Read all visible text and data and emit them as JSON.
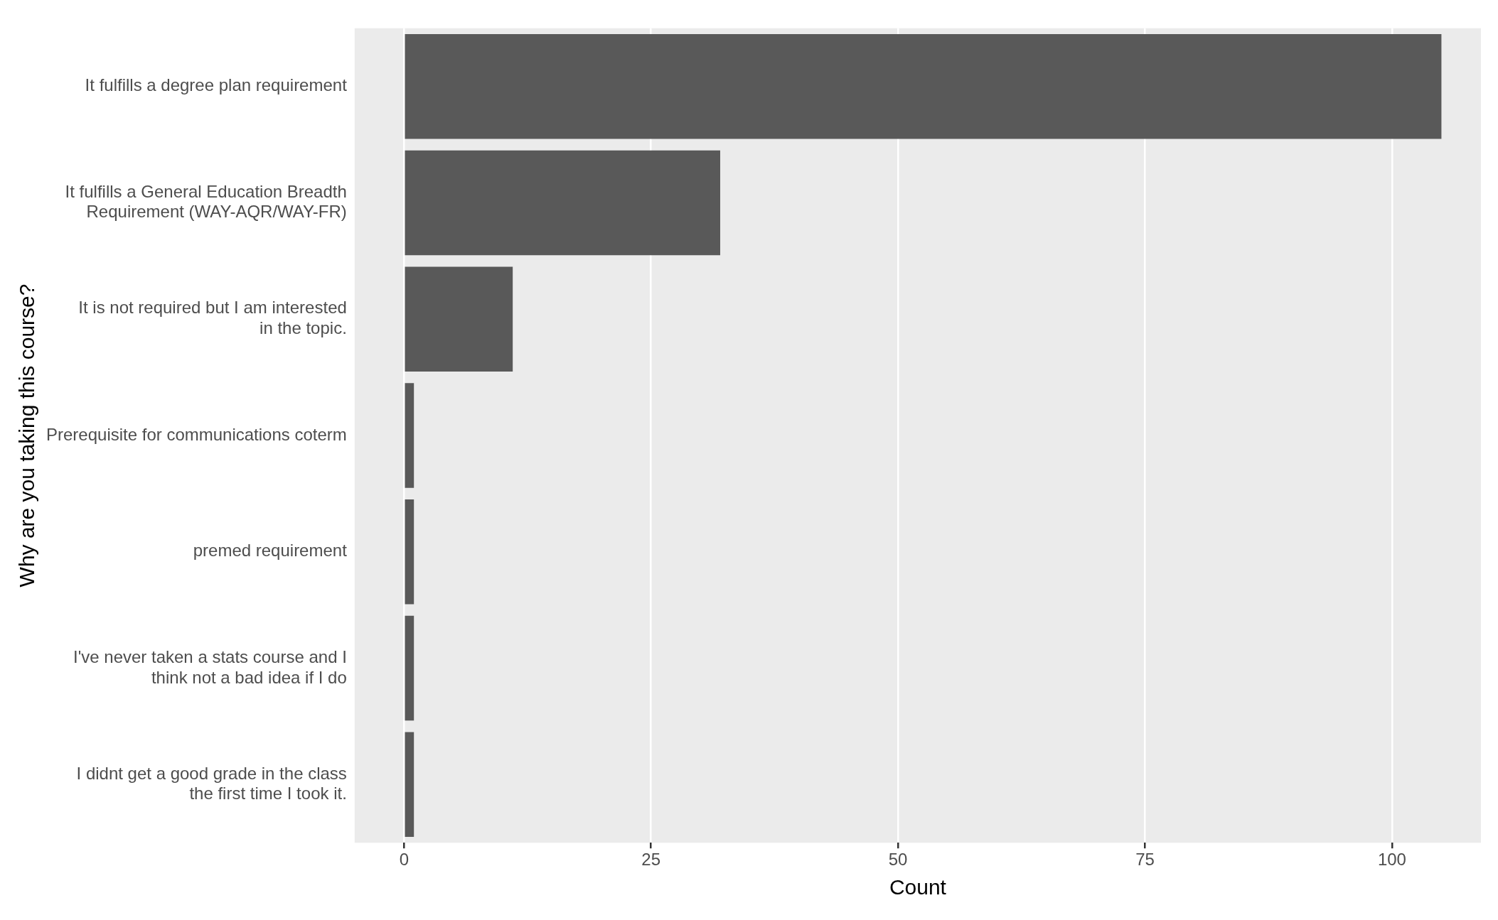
{
  "chart_data": {
    "type": "bar",
    "orientation": "horizontal",
    "xlabel": "Count",
    "ylabel": "Why are you taking this course?",
    "categories": [
      "It fulfills a degree plan requirement",
      "It fulfills a General Education Breadth\nRequirement (WAY-AQR/WAY-FR)",
      "It is not required but I am interested\nin the topic.",
      "Prerequisite for communications coterm",
      "premed requirement",
      "I've never taken a stats course and I\nthink not a bad idea if I do",
      "I didnt get a good grade in the class\nthe first time I took it."
    ],
    "values": [
      105,
      32,
      11,
      1,
      1,
      1,
      1
    ],
    "color": "#595959",
    "xlim": [
      -5,
      109
    ],
    "xticks": [
      0,
      25,
      50,
      75,
      100
    ],
    "grid": "x",
    "legend": false
  }
}
